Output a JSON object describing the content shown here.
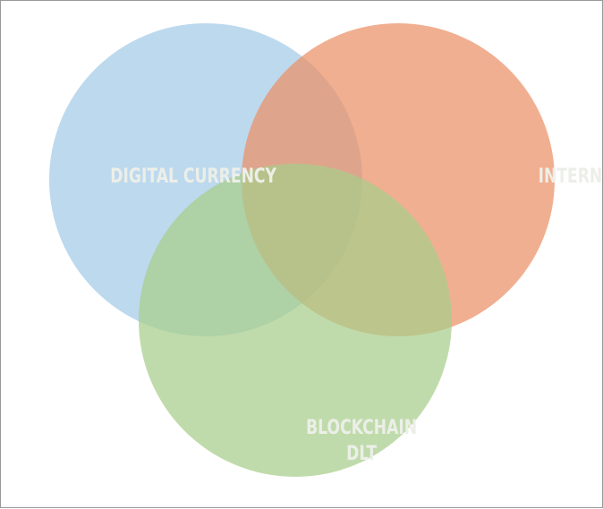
{
  "diagram": {
    "type": "venn",
    "sets": [
      {
        "id": "digital-currency",
        "label": "DIGITAL CURRENCY",
        "color": "#a3cbe8"
      },
      {
        "id": "internet",
        "label": "INTERNET",
        "color": "#ec9066"
      },
      {
        "id": "blockchain",
        "label": "BLOCKCHAIN",
        "label_line2": "DLT",
        "color": "#a8cd8a"
      }
    ],
    "label_color": "#ecefe8"
  }
}
